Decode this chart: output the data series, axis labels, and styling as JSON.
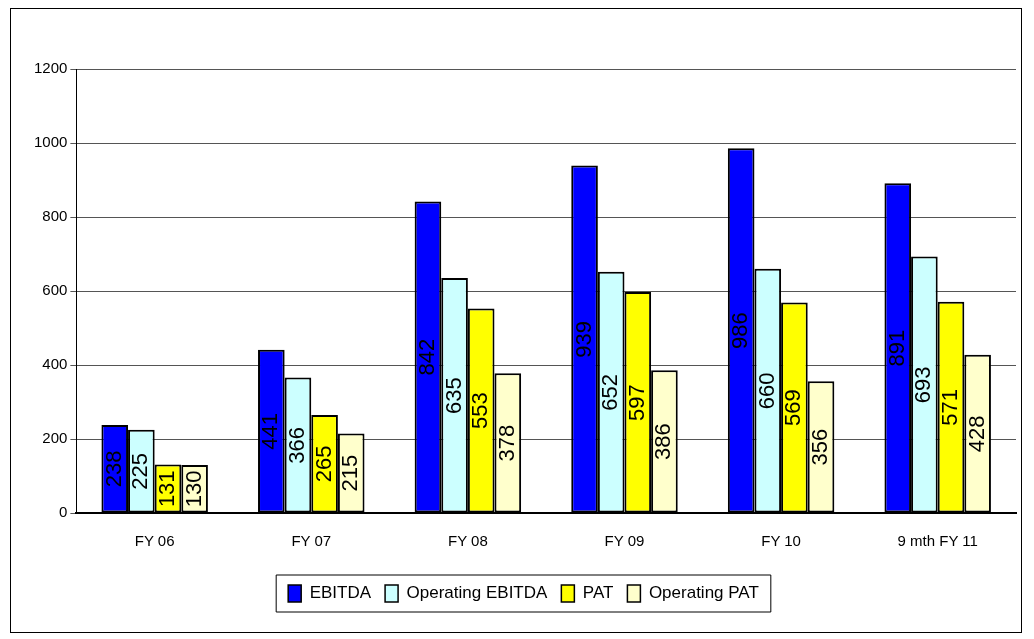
{
  "chart_data": {
    "type": "bar",
    "categories": [
      "FY 06",
      "FY 07",
      "FY 08",
      "FY 09",
      "FY 10",
      "9 mth FY 11"
    ],
    "series": [
      {
        "name": "EBITDA",
        "color": "#0000ff",
        "values": [
          238,
          441,
          842,
          939,
          986,
          891
        ]
      },
      {
        "name": "Operating EBITDA",
        "color": "#ccffff",
        "values": [
          225,
          366,
          635,
          652,
          660,
          693
        ]
      },
      {
        "name": "PAT",
        "color": "#ffff00",
        "values": [
          131,
          265,
          553,
          597,
          569,
          571
        ]
      },
      {
        "name": "Operating PAT",
        "color": "#ffffcc",
        "values": [
          130,
          215,
          378,
          386,
          356,
          428
        ]
      }
    ],
    "ylim": [
      0,
      1200
    ],
    "yticks": [
      0,
      200,
      400,
      600,
      800,
      1000,
      1200
    ],
    "grid": "y",
    "legend": "bottom",
    "data_labels": true
  }
}
